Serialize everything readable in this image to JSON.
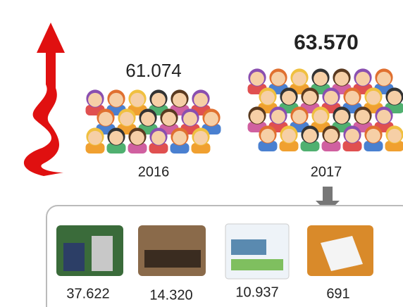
{
  "years": [
    {
      "value": "61.074",
      "year": "2016"
    },
    {
      "value": "63.570",
      "year": "2017"
    }
  ],
  "breakdown": [
    "37.622",
    "14.320",
    "10.937",
    "691"
  ]
}
